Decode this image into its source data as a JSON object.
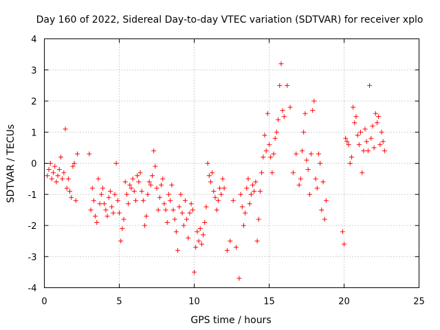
{
  "chart_data": {
    "type": "scatter",
    "marker": "plus",
    "title": "Day 160 of 2022, Sidereal Day-to-day VTEC variation (SDTVAR) for receiver xplo",
    "xlabel": "GPS time / hours",
    "ylabel": "SDTVAR / TECUs",
    "xlim": [
      0,
      25
    ],
    "ylim": [
      -4,
      4
    ],
    "xticks": [
      0,
      5,
      10,
      15,
      20,
      25
    ],
    "yticks": [
      -4,
      -3,
      -2,
      -1,
      0,
      1,
      2,
      3,
      4
    ],
    "xtick_labels": [
      "0",
      "5",
      "10",
      "15",
      "20",
      "25"
    ],
    "ytick_labels": [
      "-4",
      "-3",
      "-2",
      "-1",
      "0",
      "1",
      "2",
      "3",
      "4"
    ],
    "grid": true,
    "legend": "none",
    "color": "#ff0000",
    "series": [
      {
        "name": "SDTVAR",
        "x": [
          0.2,
          0.3,
          0.4,
          0.5,
          0.6,
          0.7,
          0.8,
          0.9,
          1.0,
          1.1,
          1.2,
          1.3,
          1.4,
          1.5,
          1.6,
          1.7,
          1.8,
          1.9,
          2.0,
          2.1,
          2.2,
          3.0,
          3.1,
          3.2,
          3.3,
          3.4,
          3.5,
          3.6,
          3.7,
          3.8,
          3.9,
          4.0,
          4.1,
          4.2,
          4.3,
          4.4,
          4.5,
          4.6,
          4.7,
          4.8,
          4.9,
          5.0,
          5.1,
          5.2,
          5.3,
          5.4,
          5.5,
          5.6,
          5.7,
          5.8,
          5.9,
          6.0,
          6.1,
          6.2,
          6.3,
          6.4,
          6.5,
          6.6,
          6.7,
          6.8,
          6.9,
          7.0,
          7.1,
          7.2,
          7.3,
          7.4,
          7.5,
          7.6,
          7.7,
          7.8,
          7.9,
          8.0,
          8.1,
          8.2,
          8.3,
          8.4,
          8.5,
          8.6,
          8.7,
          8.8,
          8.9,
          9.0,
          9.1,
          9.2,
          9.3,
          9.4,
          9.5,
          9.6,
          9.7,
          9.8,
          9.9,
          10.0,
          10.1,
          10.2,
          10.3,
          10.4,
          10.5,
          10.6,
          10.7,
          10.8,
          10.9,
          11.0,
          11.1,
          11.2,
          11.3,
          11.4,
          11.5,
          11.6,
          11.7,
          11.8,
          11.9,
          12.0,
          12.2,
          12.4,
          12.6,
          12.8,
          13.0,
          13.1,
          13.2,
          13.3,
          13.4,
          13.5,
          13.6,
          13.7,
          13.8,
          13.9,
          14.0,
          14.1,
          14.2,
          14.3,
          14.4,
          14.5,
          14.6,
          14.7,
          14.8,
          14.9,
          15.0,
          15.1,
          15.2,
          15.3,
          15.4,
          15.5,
          15.6,
          15.7,
          15.8,
          15.9,
          16.0,
          16.2,
          16.4,
          16.6,
          16.8,
          17.0,
          17.1,
          17.2,
          17.3,
          17.4,
          17.5,
          17.6,
          17.7,
          17.8,
          17.9,
          18.0,
          18.1,
          18.2,
          18.3,
          18.4,
          18.5,
          18.6,
          18.7,
          18.8,
          19.9,
          20.0,
          20.1,
          20.2,
          20.3,
          20.4,
          20.5,
          20.6,
          20.7,
          20.8,
          20.9,
          21.0,
          21.1,
          21.2,
          21.3,
          21.4,
          21.5,
          21.6,
          21.7,
          21.8,
          21.9,
          22.0,
          22.1,
          22.2,
          22.3,
          22.4,
          22.5,
          22.6,
          22.7
        ],
        "y": [
          -0.4,
          -0.2,
          0.0,
          -0.5,
          -0.3,
          -0.1,
          -0.6,
          -0.4,
          -0.2,
          0.2,
          -0.5,
          -0.3,
          1.1,
          -0.8,
          -0.5,
          -0.9,
          -1.1,
          -0.1,
          0.0,
          -1.2,
          0.3,
          0.3,
          -1.5,
          -0.8,
          -1.2,
          -1.7,
          -1.9,
          -0.5,
          -1.3,
          -1.0,
          -0.8,
          -1.3,
          -1.5,
          -1.7,
          -1.1,
          -0.9,
          -1.4,
          -1.6,
          -1.0,
          0.0,
          -1.2,
          -1.6,
          -2.5,
          -2.1,
          -1.8,
          -0.6,
          -1.0,
          -1.3,
          -0.7,
          -0.8,
          -0.5,
          -0.9,
          -1.2,
          -0.4,
          -0.6,
          -0.3,
          -0.9,
          -1.2,
          -2.0,
          -1.7,
          -1.0,
          -0.6,
          -0.7,
          -0.4,
          0.4,
          -0.1,
          -0.8,
          -1.5,
          -1.1,
          -0.7,
          -0.5,
          -1.3,
          -1.5,
          -1.9,
          -1.0,
          -1.2,
          -0.7,
          -1.5,
          -1.8,
          -2.2,
          -2.8,
          -1.4,
          -1.0,
          -1.6,
          -2.0,
          -1.2,
          -1.8,
          -2.4,
          -1.6,
          -1.3,
          -1.5,
          -3.5,
          -2.7,
          -2.2,
          -2.5,
          -2.1,
          -2.6,
          -2.3,
          -1.9,
          -1.4,
          0.0,
          -0.4,
          -0.6,
          -0.3,
          -0.9,
          -1.1,
          -1.5,
          -1.2,
          -0.8,
          -1.0,
          -0.5,
          -0.8,
          -2.8,
          -2.5,
          -1.2,
          -2.7,
          -3.7,
          -1.0,
          -1.4,
          -2.0,
          -1.6,
          -0.8,
          -0.5,
          -1.3,
          -1.0,
          -0.7,
          -0.9,
          -0.6,
          -2.5,
          -1.8,
          -0.9,
          -0.3,
          0.2,
          0.9,
          0.4,
          1.6,
          0.6,
          0.2,
          -0.3,
          0.3,
          0.8,
          1.0,
          1.4,
          2.5,
          3.2,
          1.7,
          1.5,
          2.5,
          1.8,
          -0.3,
          0.3,
          -0.7,
          -0.5,
          0.4,
          1.0,
          1.6,
          0.1,
          -0.2,
          -1.0,
          0.3,
          1.7,
          2.0,
          -0.5,
          -0.8,
          0.3,
          0.0,
          -1.5,
          -0.6,
          -1.8,
          -1.2,
          -2.2,
          -2.6,
          0.8,
          0.7,
          0.6,
          0.0,
          0.2,
          1.8,
          1.3,
          1.5,
          0.9,
          0.6,
          1.0,
          -0.3,
          0.4,
          1.1,
          0.7,
          0.4,
          2.5,
          0.8,
          1.2,
          0.5,
          1.6,
          1.3,
          1.5,
          0.6,
          1.0,
          0.7,
          0.4
        ],
        "note": "values estimated from plotted marks; series is dense (hundreds of points)"
      }
    ]
  }
}
